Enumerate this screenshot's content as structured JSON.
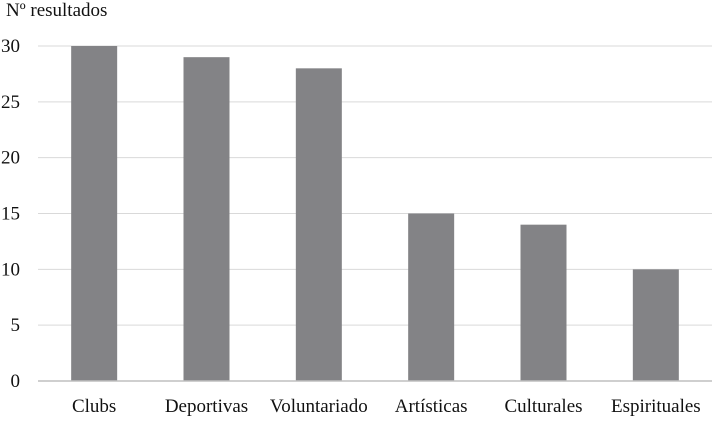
{
  "chart_data": {
    "type": "bar",
    "ylabel": "Nº resultados",
    "xlabel": "",
    "categories": [
      "Clubs",
      "Deportivas",
      "Voluntariado",
      "Artísticas",
      "Culturales",
      "Espirituales"
    ],
    "values": [
      30,
      29,
      28,
      15,
      14,
      10
    ],
    "ylim": [
      0,
      30
    ],
    "yticks": [
      "0",
      "5",
      "10",
      "15",
      "20",
      "25",
      "30"
    ],
    "grid": true,
    "legend": "none",
    "colors": {
      "bar": "#838386",
      "grid": "#d9d9d9",
      "axis": "#bfbfbf"
    }
  }
}
